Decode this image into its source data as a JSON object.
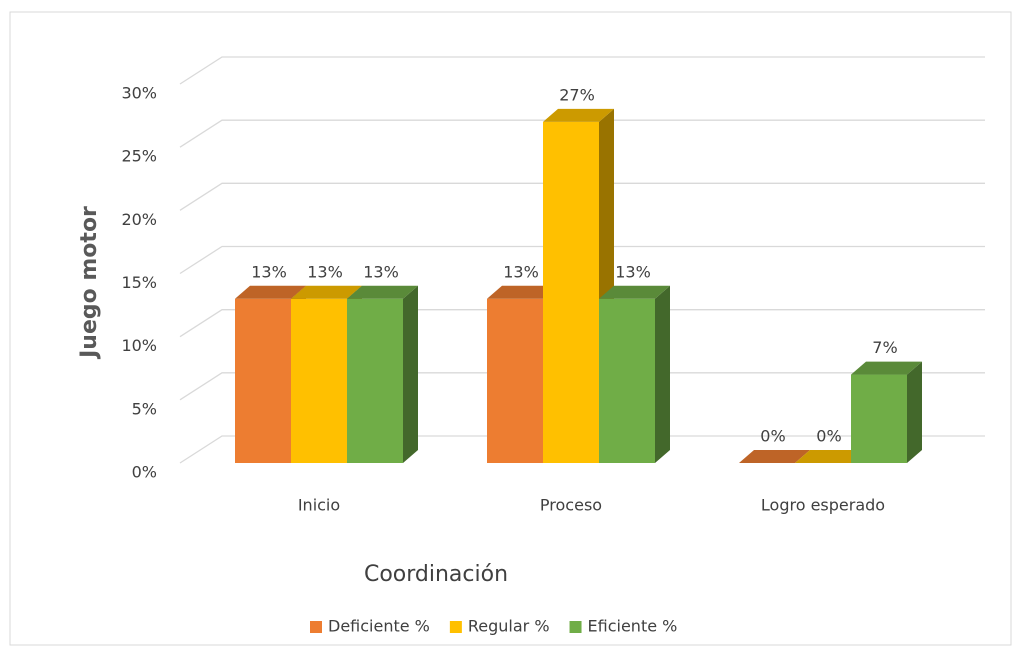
{
  "chart_data": {
    "type": "bar3d",
    "x_label": "Coordinación",
    "y_label": "Juego motor",
    "categories": [
      "Inicio",
      "Proceso",
      "Logro esperado"
    ],
    "series": [
      {
        "name": "Deficiente %",
        "color": "#ed7d31",
        "values": [
          13,
          13,
          0
        ],
        "value_labels": [
          "13%",
          "13%",
          "0%"
        ]
      },
      {
        "name": "Regular %",
        "color": "#ffc000",
        "values": [
          13,
          27,
          0
        ],
        "value_labels": [
          "13%",
          "27%",
          "0%"
        ]
      },
      {
        "name": "Eficiente %",
        "color": "#70ad47",
        "values": [
          13,
          13,
          7
        ],
        "value_labels": [
          "13%",
          "13%",
          "7%"
        ]
      }
    ],
    "ylim": [
      0,
      30
    ],
    "yticks": [
      {
        "value": 0,
        "label": "0%"
      },
      {
        "value": 5,
        "label": "5%"
      },
      {
        "value": 10,
        "label": "10%"
      },
      {
        "value": 15,
        "label": "15%"
      },
      {
        "value": 20,
        "label": "20%"
      },
      {
        "value": 25,
        "label": "25%"
      },
      {
        "value": 30,
        "label": "30%"
      }
    ],
    "grid": true,
    "legend": "bottom"
  }
}
